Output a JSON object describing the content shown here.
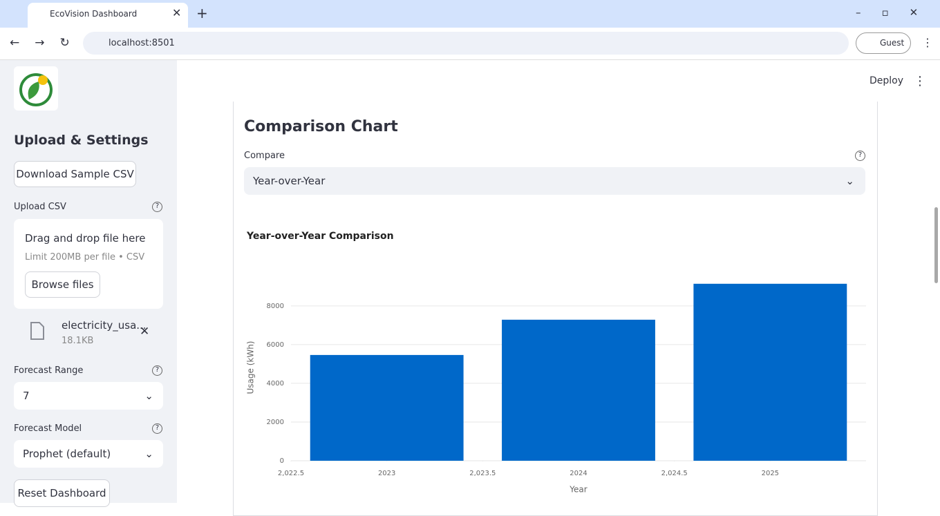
{
  "browser": {
    "tab_title": "EcoVision Dashboard",
    "url": "localhost:8501",
    "profile": "Guest"
  },
  "sidebar": {
    "heading": "Upload & Settings",
    "download_button": "Download Sample CSV",
    "upload_label": "Upload CSV",
    "dropzone_title": "Drag and drop file here",
    "dropzone_limit": "Limit 200MB per file • CSV",
    "browse_button": "Browse files",
    "file_name": "electricity_usa...",
    "file_size": "18.1KB",
    "forecast_range_label": "Forecast Range",
    "forecast_range_value": "7",
    "forecast_model_label": "Forecast Model",
    "forecast_model_value": "Prophet (default)",
    "reset_button": "Reset Dashboard"
  },
  "main": {
    "deploy": "Deploy",
    "section_title": "Comparison Chart",
    "compare_label": "Compare",
    "compare_value": "Year-over-Year"
  },
  "chart_data": {
    "type": "bar",
    "title": "Year-over-Year Comparison",
    "x_label": "Year",
    "y_label": "Usage (kWh)",
    "x": [
      2023,
      2024,
      2025
    ],
    "values": [
      5464,
      7286,
      9143
    ],
    "color": "#0068c9",
    "xlim": [
      2022.5,
      2025.5
    ],
    "xticks": [
      {
        "value": 2022.5,
        "label": "2,022.5"
      },
      2023,
      {
        "value": 2023.5,
        "label": "2,023.5"
      },
      2024,
      {
        "value": 2024.5,
        "label": "2,024.5"
      },
      2025
    ],
    "ylim": [
      0,
      9600
    ],
    "yticks": [
      0,
      2000,
      4000,
      6000,
      8000
    ],
    "grid": true
  }
}
